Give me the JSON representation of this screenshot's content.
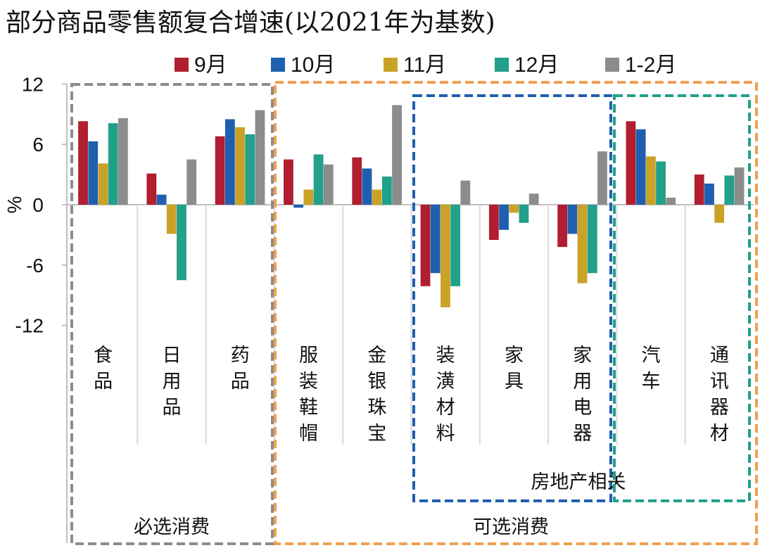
{
  "chart_data": {
    "type": "bar",
    "title": "部分商品零售额复合增速(以2021年为基数)",
    "ylabel": "%",
    "ylim": [
      -12,
      12
    ],
    "yticks": [
      12,
      6,
      0,
      -6,
      -12
    ],
    "categories": [
      "食品",
      "日用品",
      "药品",
      "服装鞋帽",
      "金银珠宝",
      "装潢材料",
      "家具",
      "家用电器",
      "汽车",
      "通讯器材"
    ],
    "series": [
      {
        "name": "9月",
        "color": "#b01e2f",
        "values": [
          8.3,
          3.1,
          6.8,
          4.5,
          4.7,
          -8.1,
          -3.5,
          -4.2,
          8.3,
          3.0
        ]
      },
      {
        "name": "10月",
        "color": "#1f5fb0",
        "values": [
          6.3,
          1.0,
          8.5,
          -0.3,
          3.6,
          -6.8,
          -2.5,
          -2.9,
          7.5,
          2.1
        ]
      },
      {
        "name": "11月",
        "color": "#c9a227",
        "values": [
          4.1,
          -2.9,
          7.7,
          1.5,
          1.5,
          -10.2,
          -0.8,
          -7.8,
          4.8,
          -1.8
        ]
      },
      {
        "name": "12月",
        "color": "#21a08a",
        "values": [
          8.1,
          -7.5,
          7.0,
          5.0,
          2.8,
          -8.1,
          -1.8,
          -6.8,
          4.3,
          2.9
        ]
      },
      {
        "name": "1-2月",
        "color": "#8c8c8c",
        "values": [
          8.6,
          4.5,
          9.4,
          4.0,
          9.9,
          2.4,
          1.1,
          5.3,
          0.7,
          3.7
        ]
      }
    ],
    "groups": [
      {
        "label": "必选消费",
        "color": "#8c8c8c",
        "categories": [
          "食品",
          "日用品",
          "药品"
        ]
      },
      {
        "label": "可选消费",
        "color": "#f0a050",
        "categories": [
          "服装鞋帽",
          "金银珠宝",
          "装潢材料",
          "家具",
          "家用电器",
          "汽车",
          "通讯器材"
        ]
      },
      {
        "label": "房地产相关",
        "color": "#1f5fb0",
        "categories": [
          "装潢材料",
          "家具",
          "家用电器"
        ]
      },
      {
        "label": "",
        "color": "#21a08a",
        "categories": [
          "汽车",
          "通讯器材"
        ]
      }
    ]
  }
}
